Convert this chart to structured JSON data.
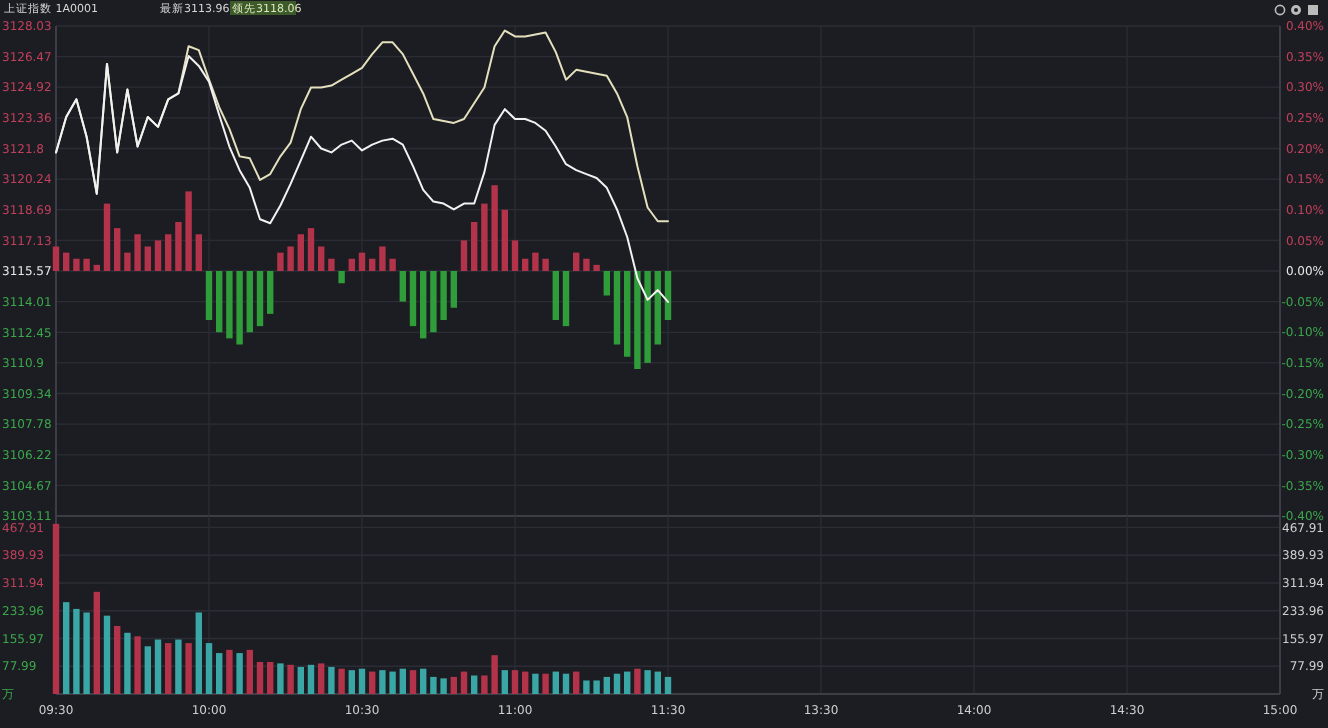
{
  "chart_data": [
    {
      "type": "line",
      "title": "上证指数  1A0001",
      "annotations": [
        "最新3113.96",
        "领先3118.06"
      ],
      "categories": [
        null,
        null,
        null,
        null,
        null,
        null,
        null,
        null,
        null,
        null,
        null,
        null,
        null,
        null,
        null,
        null,
        null,
        null,
        null,
        null,
        null,
        null,
        null,
        null,
        null,
        null,
        null,
        null,
        null,
        null,
        null,
        null,
        null,
        null,
        null,
        null,
        null,
        null,
        null,
        null,
        null,
        null,
        null,
        null,
        null,
        null,
        null,
        null,
        null,
        null,
        null,
        null,
        null,
        null,
        null,
        null,
        null,
        null,
        null,
        null,
        null,
        null,
        null,
        null,
        null,
        null,
        null,
        null,
        null,
        null,
        null,
        null,
        null,
        null,
        null,
        null,
        null,
        null,
        null,
        null,
        null,
        null,
        null,
        null,
        null,
        null,
        null,
        null,
        null,
        null,
        null,
        null,
        null,
        null,
        null,
        null,
        null,
        null,
        null,
        null,
        null,
        null,
        null,
        null,
        null,
        null,
        null,
        null,
        null,
        null,
        null,
        null,
        null,
        null,
        null,
        null,
        null,
        null,
        null,
        null,
        null
      ],
      "ylim": [
        3103.11,
        3128.03
      ],
      "yticks": [
        3103.11,
        3104.67,
        3106.22,
        3107.78,
        3109.34,
        3110.9,
        3112.45,
        3114.01,
        3115.57,
        3117.13,
        3118.69,
        3120.24,
        3121.8,
        3123.36,
        3124.92,
        3126.47,
        3128.03
      ],
      "y2lim": [
        -0.4,
        0.4
      ],
      "y2ticks": [
        {
          "value": -0.4,
          "label": "-0.40%"
        },
        {
          "value": -0.35,
          "label": "-0.35%"
        },
        {
          "value": -0.3,
          "label": "-0.30%"
        },
        {
          "value": -0.25,
          "label": "-0.25%"
        },
        {
          "value": -0.2,
          "label": "-0.20%"
        },
        {
          "value": -0.15,
          "label": "-0.15%"
        },
        {
          "value": -0.1,
          "label": "-0.10%"
        },
        {
          "value": -0.05,
          "label": "-0.05%"
        },
        {
          "value": 0,
          "label": "0.00%"
        },
        {
          "value": 0.05,
          "label": "0.05%"
        },
        {
          "value": 0.1,
          "label": "0.10%"
        },
        {
          "value": 0.15,
          "label": "0.15%"
        },
        {
          "value": 0.2,
          "label": "0.20%"
        },
        {
          "value": 0.25,
          "label": "0.25%"
        },
        {
          "value": 0.3,
          "label": "0.30%"
        },
        {
          "value": 0.35,
          "label": "0.35%"
        },
        {
          "value": 0.4,
          "label": "0.40%"
        }
      ],
      "grid": true,
      "tick_labels": "y",
      "series": [
        {
          "type": "bar",
          "axis": "y2",
          "values": [
            0.04,
            0.03,
            0.02,
            0.02,
            0.01,
            0.11,
            0.07,
            0.03,
            0.06,
            0.04,
            0.05,
            0.06,
            0.08,
            0.13,
            0.06,
            -0.08,
            -0.1,
            -0.11,
            -0.12,
            -0.1,
            -0.09,
            -0.07,
            0.03,
            0.04,
            0.06,
            0.07,
            0.04,
            0.02,
            -0.02,
            0.02,
            0.03,
            0.02,
            0.04,
            0.02,
            -0.05,
            -0.09,
            -0.11,
            -0.1,
            -0.08,
            -0.06,
            0.05,
            0.08,
            0.11,
            0.14,
            0.1,
            0.05,
            0.02,
            0.03,
            0.02,
            -0.08,
            -0.09,
            0.03,
            0.02,
            0.01,
            -0.04,
            -0.12,
            -0.14,
            -0.16,
            -0.15,
            -0.12,
            -0.08,
            null,
            null,
            null,
            null,
            null,
            null,
            null,
            null,
            null,
            null,
            null,
            null,
            null,
            null,
            null,
            null,
            null,
            null,
            null,
            null,
            null,
            null,
            null,
            null,
            null,
            null,
            null,
            null,
            null,
            null,
            null,
            null,
            null,
            null,
            null,
            null,
            null,
            null,
            null,
            null,
            null,
            null,
            null,
            null,
            null,
            null,
            null,
            null,
            null,
            null,
            null,
            null,
            null,
            null,
            null,
            null,
            null,
            null,
            null,
            null
          ],
          "colors": [
            "#b3344a",
            "#b3344a",
            "#b3344a",
            "#b3344a",
            "#b3344a",
            "#b3344a",
            "#b3344a",
            "#b3344a",
            "#b3344a",
            "#b3344a",
            "#b3344a",
            "#b3344a",
            "#b3344a",
            "#b3344a",
            "#b3344a",
            "#2f9e3a",
            "#2f9e3a",
            "#2f9e3a",
            "#2f9e3a",
            "#2f9e3a",
            "#2f9e3a",
            "#2f9e3a",
            "#b3344a",
            "#b3344a",
            "#b3344a",
            "#b3344a",
            "#b3344a",
            "#b3344a",
            "#2f9e3a",
            "#b3344a",
            "#b3344a",
            "#b3344a",
            "#b3344a",
            "#b3344a",
            "#2f9e3a",
            "#2f9e3a",
            "#2f9e3a",
            "#2f9e3a",
            "#2f9e3a",
            "#2f9e3a",
            "#b3344a",
            "#b3344a",
            "#b3344a",
            "#b3344a",
            "#b3344a",
            "#b3344a",
            "#b3344a",
            "#b3344a",
            "#b3344a",
            "#2f9e3a",
            "#2f9e3a",
            "#b3344a",
            "#b3344a",
            "#b3344a",
            "#2f9e3a",
            "#2f9e3a",
            "#2f9e3a",
            "#2f9e3a",
            "#2f9e3a",
            "#2f9e3a",
            "#2f9e3a",
            null,
            null,
            null,
            null,
            null,
            null,
            null,
            null,
            null,
            null,
            null,
            null,
            null,
            null,
            null,
            null,
            null,
            null,
            null,
            null,
            null,
            null,
            null,
            null,
            null,
            null,
            null,
            null,
            null,
            null,
            null,
            null,
            null,
            null,
            null,
            null,
            null,
            null,
            null,
            null,
            null,
            null,
            null,
            null,
            null,
            null,
            null,
            null,
            null,
            null,
            null,
            null,
            null,
            null,
            null,
            null,
            null,
            null,
            null,
            null
          ]
        },
        {
          "type": "line",
          "color": "#e4e0bc",
          "values": [
            3121.6,
            3123.4,
            3124.3,
            3122.4,
            3119.5,
            3126.1,
            3121.6,
            3124.8,
            3121.9,
            3123.4,
            3122.9,
            3124.3,
            3124.6,
            3127.0,
            3126.8,
            3125.3,
            3123.9,
            3122.8,
            3121.4,
            3121.3,
            3120.2,
            3120.5,
            3121.4,
            3122.1,
            3123.8,
            3124.9,
            3124.9,
            3125.0,
            3125.3,
            3125.6,
            3125.9,
            3126.6,
            3127.2,
            3127.2,
            3126.6,
            3125.6,
            3124.6,
            3123.3,
            3123.2,
            3123.1,
            3123.3,
            3124.1,
            3124.9,
            3127.0,
            3127.8,
            3127.5,
            3127.5,
            3127.6,
            3127.7,
            3126.7,
            3125.3,
            3125.8,
            3125.7,
            3125.6,
            3125.5,
            3124.6,
            3123.4,
            3120.9,
            3118.8,
            3118.1,
            3118.1,
            null,
            null,
            null,
            null,
            null,
            null,
            null,
            null,
            null,
            null,
            null,
            null,
            null,
            null,
            null,
            null,
            null,
            null,
            null,
            null,
            null,
            null,
            null,
            null,
            null,
            null,
            null,
            null,
            null,
            null,
            null,
            null,
            null,
            null,
            null,
            null,
            null,
            null,
            null,
            null,
            null,
            null,
            null,
            null,
            null,
            null,
            null,
            null,
            null,
            null,
            null,
            null,
            null,
            null,
            null,
            null,
            null,
            null,
            null,
            null
          ]
        },
        {
          "type": "line",
          "color": "#f2f2f2",
          "values": [
            3121.6,
            3123.4,
            3124.3,
            3122.4,
            3119.5,
            3126.1,
            3121.6,
            3124.8,
            3121.9,
            3123.4,
            3122.9,
            3124.3,
            3124.6,
            3126.5,
            3126.0,
            3125.2,
            3123.5,
            3121.9,
            3120.7,
            3119.8,
            3118.2,
            3118.0,
            3118.9,
            3120.0,
            3121.2,
            3122.4,
            3121.8,
            3121.6,
            3122.0,
            3122.2,
            3121.7,
            3122.0,
            3122.2,
            3122.3,
            3122.0,
            3120.9,
            3119.7,
            3119.1,
            3119.0,
            3118.7,
            3119.0,
            3119.0,
            3120.6,
            3123.0,
            3123.8,
            3123.3,
            3123.3,
            3123.1,
            3122.7,
            3121.9,
            3121.0,
            3120.7,
            3120.5,
            3120.3,
            3119.8,
            3118.7,
            3117.3,
            3115.2,
            3114.1,
            3114.6,
            3114.0,
            null,
            null,
            null,
            null,
            null,
            null,
            null,
            null,
            null,
            null,
            null,
            null,
            null,
            null,
            null,
            null,
            null,
            null,
            null,
            null,
            null,
            null,
            null,
            null,
            null,
            null,
            null,
            null,
            null,
            null,
            null,
            null,
            null,
            null,
            null,
            null,
            null,
            null,
            null,
            null,
            null,
            null,
            null,
            null,
            null,
            null,
            null,
            null,
            null,
            null,
            null,
            null,
            null,
            null,
            null,
            null,
            null,
            null,
            null,
            null
          ]
        }
      ]
    },
    {
      "type": "bar",
      "categories": [
        "09:30",
        null,
        null,
        null,
        null,
        null,
        null,
        null,
        null,
        null,
        null,
        null,
        null,
        null,
        null,
        "10:00",
        null,
        null,
        null,
        null,
        null,
        null,
        null,
        null,
        null,
        null,
        null,
        null,
        null,
        null,
        "10:30",
        null,
        null,
        null,
        null,
        null,
        null,
        null,
        null,
        null,
        null,
        null,
        null,
        null,
        null,
        "11:00",
        null,
        null,
        null,
        null,
        null,
        null,
        null,
        null,
        null,
        null,
        null,
        null,
        null,
        null,
        "11:30",
        null,
        null,
        null,
        null,
        null,
        null,
        null,
        null,
        null,
        null,
        null,
        null,
        null,
        null,
        "13:30",
        null,
        null,
        null,
        null,
        null,
        null,
        null,
        null,
        null,
        null,
        null,
        null,
        null,
        null,
        "14:00",
        null,
        null,
        null,
        null,
        null,
        null,
        null,
        null,
        null,
        null,
        null,
        null,
        null,
        null,
        "14:30",
        null,
        null,
        null,
        null,
        null,
        null,
        null,
        null,
        null,
        null,
        null,
        null,
        null,
        null,
        "15:00"
      ],
      "ylim": [
        0,
        500
      ],
      "yticks": [
        {
          "value": 0,
          "label": "万"
        },
        77.99,
        155.97,
        233.96,
        311.94,
        389.93,
        467.91
      ],
      "y2lim": [
        0,
        500
      ],
      "y2ticks": [
        {
          "value": 0,
          "label": "万"
        },
        77.99,
        155.97,
        233.96,
        311.94,
        389.93,
        467.91
      ],
      "grid": true,
      "values": [
        478,
        258,
        239,
        229,
        287,
        220,
        191,
        172,
        162,
        134,
        153,
        143,
        153,
        143,
        229,
        143,
        115,
        124,
        115,
        124,
        90,
        90,
        86,
        82,
        76,
        82,
        86,
        76,
        71,
        67,
        71,
        63,
        67,
        63,
        71,
        67,
        71,
        48,
        44,
        48,
        63,
        52,
        52,
        109,
        67,
        67,
        63,
        57,
        57,
        63,
        57,
        63,
        38,
        38,
        48,
        57,
        63,
        71,
        67,
        63,
        48,
        null,
        null,
        null,
        null,
        null,
        null,
        null,
        null,
        null,
        null,
        null,
        null,
        null,
        null,
        null,
        null,
        null,
        null,
        null,
        null,
        null,
        null,
        null,
        null,
        null,
        null,
        null,
        null,
        null,
        null,
        null,
        null,
        null,
        null,
        null,
        null,
        null,
        null,
        null,
        null,
        null,
        null,
        null,
        null,
        null,
        null,
        null,
        null,
        null,
        null,
        null,
        null,
        null,
        null,
        null,
        null,
        null,
        null,
        null,
        null
      ],
      "colors": [
        "#b3344a",
        "#3aa6a6",
        "#3aa6a6",
        "#3aa6a6",
        "#b3344a",
        "#3aa6a6",
        "#b3344a",
        "#3aa6a6",
        "#b3344a",
        "#3aa6a6",
        "#3aa6a6",
        "#b3344a",
        "#3aa6a6",
        "#b3344a",
        "#3aa6a6",
        "#3aa6a6",
        "#3aa6a6",
        "#b3344a",
        "#3aa6a6",
        "#b3344a",
        "#b3344a",
        "#b3344a",
        "#3aa6a6",
        "#b3344a",
        "#3aa6a6",
        "#3aa6a6",
        "#b3344a",
        "#3aa6a6",
        "#b3344a",
        "#3aa6a6",
        "#3aa6a6",
        "#b3344a",
        "#3aa6a6",
        "#3aa6a6",
        "#3aa6a6",
        "#b3344a",
        "#3aa6a6",
        "#3aa6a6",
        "#3aa6a6",
        "#b3344a",
        "#b3344a",
        "#3aa6a6",
        "#b3344a",
        "#b3344a",
        "#3aa6a6",
        "#b3344a",
        "#b3344a",
        "#3aa6a6",
        "#b3344a",
        "#3aa6a6",
        "#3aa6a6",
        "#b3344a",
        "#3aa6a6",
        "#3aa6a6",
        "#3aa6a6",
        "#3aa6a6",
        "#3aa6a6",
        "#b3344a",
        "#3aa6a6",
        "#3aa6a6",
        "#3aa6a6",
        null,
        null,
        null,
        null,
        null,
        null,
        null,
        null,
        null,
        null,
        null,
        null,
        null,
        null,
        null,
        null,
        null,
        null,
        null,
        null,
        null,
        null,
        null,
        null,
        null,
        null,
        null,
        null,
        null,
        null,
        null,
        null,
        null,
        null,
        null,
        null,
        null,
        null,
        null,
        null,
        null,
        null,
        null,
        null,
        null,
        null,
        null,
        null,
        null,
        null,
        null,
        null,
        null,
        null,
        null,
        null,
        null,
        null,
        null,
        null
      ]
    }
  ]
}
